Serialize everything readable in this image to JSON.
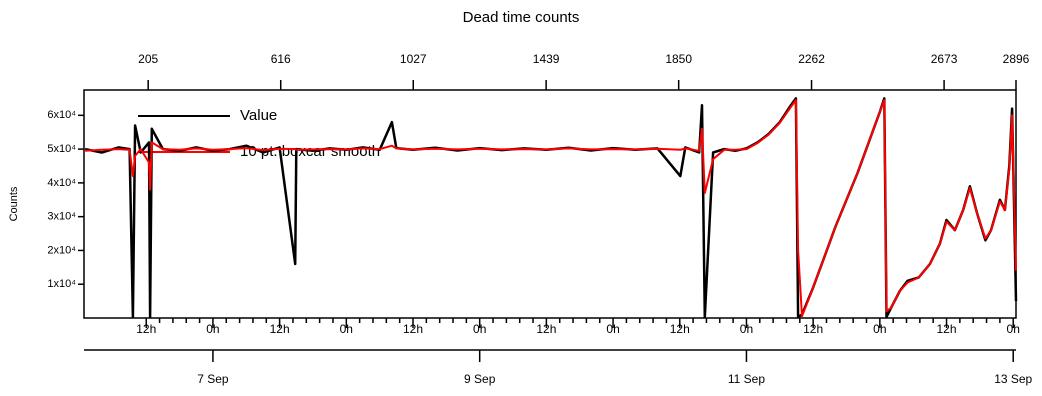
{
  "chart_data": {
    "type": "line",
    "title": "Dead time counts",
    "y_label": "Counts",
    "x": [
      -23,
      -20,
      -17,
      -15,
      -14.4,
      -14,
      -13,
      -11.5,
      -11.3,
      -11,
      -9,
      -6,
      -3,
      0,
      3,
      6,
      9,
      12,
      14.8,
      15,
      18,
      21,
      24,
      27,
      30,
      32.2,
      33,
      36,
      40,
      44,
      48,
      52,
      56,
      60,
      64,
      68,
      72,
      76,
      80,
      84.1,
      85,
      87.5,
      88,
      88.5,
      90,
      92,
      94,
      96,
      98,
      100,
      102,
      104,
      104.9,
      105.3,
      106,
      108,
      110,
      112,
      114,
      116,
      118,
      120,
      120.8,
      121.2,
      122,
      123.6,
      125,
      127,
      129,
      130.8,
      132,
      133.5,
      135,
      136.2,
      137.5,
      139,
      140,
      141.6,
      142.5,
      143.3,
      143.8,
      144.5
    ],
    "series": [
      {
        "name": "Value",
        "color": "#000000",
        "values": [
          50000,
          49000,
          50500,
          50000,
          300,
          57000,
          49000,
          52000,
          300,
          56000,
          50000,
          49500,
          50500,
          49500,
          50000,
          51000,
          49000,
          50500,
          16000,
          50000,
          49500,
          50200,
          49800,
          50500,
          49800,
          58000,
          50300,
          49800,
          50400,
          49600,
          50300,
          49700,
          50200,
          49800,
          50400,
          49600,
          50300,
          49800,
          50200,
          42000,
          50500,
          49000,
          63000,
          300,
          49000,
          50000,
          49500,
          50200,
          52000,
          54500,
          58000,
          63000,
          65000,
          300,
          1000,
          9000,
          18000,
          27000,
          35000,
          43000,
          52000,
          61000,
          65000,
          300,
          3000,
          8000,
          11000,
          12000,
          16000,
          22000,
          29000,
          26000,
          32000,
          39000,
          31000,
          23000,
          26000,
          35000,
          32000,
          45000,
          62000,
          5000
        ]
      },
      {
        "name": "10 pt. boxcar smooth",
        "color": "#ff0000",
        "values": [
          49500,
          49800,
          50000,
          49800,
          42000,
          48000,
          50000,
          46000,
          38000,
          52000,
          50000,
          49800,
          50200,
          49800,
          50000,
          50300,
          49700,
          50100,
          50000,
          49800,
          49900,
          50000,
          49900,
          50200,
          50000,
          51000,
          50200,
          49900,
          50100,
          49900,
          50100,
          49900,
          50000,
          49900,
          50200,
          49900,
          50000,
          49900,
          50100,
          49800,
          50200,
          49500,
          56000,
          37000,
          47000,
          49800,
          49800,
          50000,
          51800,
          54300,
          57800,
          62500,
          64500,
          20000,
          500,
          9000,
          18000,
          27000,
          35000,
          43000,
          52000,
          61000,
          64500,
          2000,
          3000,
          8000,
          10500,
          12000,
          16000,
          22000,
          28500,
          26000,
          32000,
          38500,
          31000,
          23500,
          26000,
          34500,
          32000,
          44000,
          60000,
          14000
        ]
      }
    ],
    "xlim": [
      -23.2,
      144.5
    ],
    "xticks": [
      {
        "value": -12,
        "label": "12h"
      },
      {
        "value": 0,
        "label": "0h"
      },
      {
        "value": 12,
        "label": "12h"
      },
      {
        "value": 24,
        "label": "0h"
      },
      {
        "value": 36,
        "label": "12h"
      },
      {
        "value": 48,
        "label": "0h"
      },
      {
        "value": 60,
        "label": "12h"
      },
      {
        "value": 72,
        "label": "0h"
      },
      {
        "value": 84,
        "label": "12h"
      },
      {
        "value": 96,
        "label": "0h"
      },
      {
        "value": 108,
        "label": "12h"
      },
      {
        "value": 120,
        "label": "0h"
      },
      {
        "value": 132,
        "label": "12h"
      },
      {
        "value": 144,
        "label": "0h"
      }
    ],
    "date_ticks": [
      {
        "value": 0,
        "label": "7 Sep"
      },
      {
        "value": 48,
        "label": "9 Sep"
      },
      {
        "value": 96,
        "label": "11 Sep"
      },
      {
        "value": 144,
        "label": "13 Sep"
      }
    ],
    "x2lim": [
      6,
      2896
    ],
    "x2ticks": [
      205,
      616,
      1027,
      1439,
      1850,
      2262,
      2673,
      2896
    ],
    "ylim": [
      0,
      67500
    ],
    "yticks": [
      {
        "value": 10000,
        "label": "1x10⁴"
      },
      {
        "value": 20000,
        "label": "2x10⁴"
      },
      {
        "value": 30000,
        "label": "3x10⁴"
      },
      {
        "value": 40000,
        "label": "4x10⁴"
      },
      {
        "value": 50000,
        "label": "5x10⁴"
      },
      {
        "value": 60000,
        "label": "6x10⁴"
      }
    ]
  }
}
